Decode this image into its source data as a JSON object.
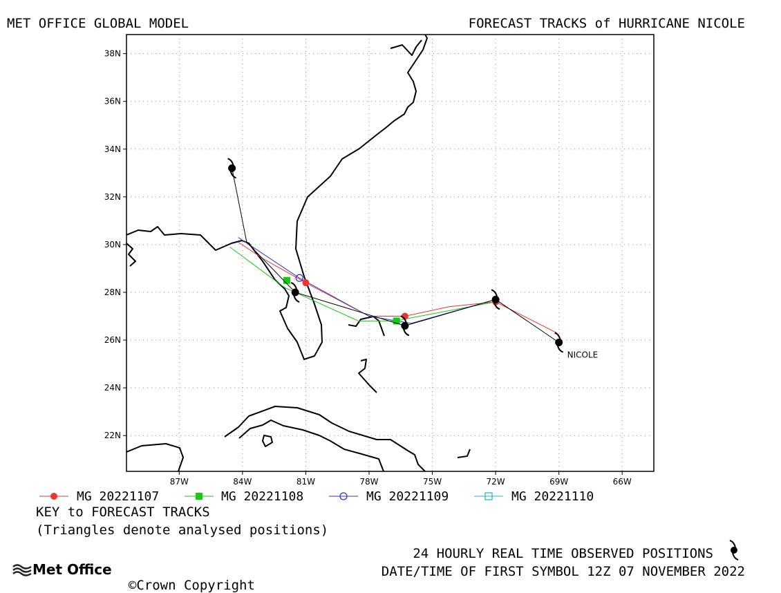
{
  "header": {
    "left_title": "MET OFFICE GLOBAL MODEL",
    "right_title": "FORECAST TRACKS of HURRICANE NICOLE"
  },
  "map": {
    "lon_range": [
      -89.5,
      -64.5
    ],
    "lat_range": [
      20.5,
      38.8
    ],
    "lat_ticks": [
      "38N",
      "36N",
      "34N",
      "32N",
      "30N",
      "28N",
      "26N",
      "24N",
      "22N"
    ],
    "lon_ticks": [
      "87W",
      "84W",
      "81W",
      "78W",
      "75W",
      "72W",
      "69W",
      "66W"
    ],
    "grid": true,
    "storm_label": "NICOLE"
  },
  "legend": [
    {
      "label": "MG 20221107",
      "color": "#ee3333",
      "marker": "filled-circle"
    },
    {
      "label": "MG 20221108",
      "color": "#11cc11",
      "marker": "filled-square"
    },
    {
      "label": "MG 20221109",
      "color": "#3333cc",
      "marker": "open-circle"
    },
    {
      "label": "MG 20221110",
      "color": "#22bbcc",
      "marker": "open-square"
    }
  ],
  "tracks": [
    {
      "name": "MG 20221107",
      "color": "#ee3333",
      "points": [
        [
          -69.1,
          26.3
        ],
        [
          -72.0,
          27.6
        ],
        [
          -74.2,
          27.4
        ],
        [
          -76.3,
          27.0
        ],
        [
          -78.0,
          27.0
        ],
        [
          -81.0,
          28.4
        ],
        [
          -83.0,
          29.4
        ],
        [
          -84.2,
          30.1
        ]
      ],
      "markers": [
        [
          -72.0,
          27.6
        ],
        [
          -76.3,
          27.0
        ],
        [
          -81.0,
          28.4
        ]
      ]
    },
    {
      "name": "MG 20221108",
      "color": "#11cc11",
      "points": [
        [
          -72.0,
          27.6
        ],
        [
          -76.2,
          26.9
        ],
        [
          -76.7,
          26.8
        ],
        [
          -78.5,
          26.8
        ],
        [
          -82.0,
          28.2
        ],
        [
          -84.6,
          29.9
        ]
      ],
      "markers": [
        [
          -76.7,
          26.8
        ],
        [
          -81.9,
          28.5
        ]
      ]
    },
    {
      "name": "MG 20221109",
      "color": "#3333cc",
      "points": [
        [
          -72.0,
          27.7
        ],
        [
          -76.0,
          26.7
        ],
        [
          -78.0,
          27.0
        ],
        [
          -81.3,
          28.6
        ],
        [
          -84.2,
          30.3
        ]
      ],
      "markers": [
        [
          -81.3,
          28.6
        ]
      ]
    }
  ],
  "observed": {
    "points": [
      [
        -69.0,
        25.9
      ],
      [
        -72.0,
        27.7
      ],
      [
        -76.3,
        26.6
      ],
      [
        -81.5,
        28.0
      ],
      [
        -83.8,
        30.1
      ],
      [
        -84.5,
        33.2
      ]
    ],
    "symbols": [
      [
        -69.0,
        25.9
      ],
      [
        -72.0,
        27.7
      ],
      [
        -76.3,
        26.6
      ],
      [
        -81.5,
        28.0
      ],
      [
        -84.5,
        33.2
      ]
    ]
  },
  "key": {
    "title": "KEY to FORECAST TRACKS",
    "note": "(Triangles denote analysed positions)"
  },
  "footer": {
    "observed_label": "24 HOURLY REAL TIME OBSERVED POSITIONS",
    "datetime": "DATE/TIME OF FIRST SYMBOL 12Z 07 NOVEMBER 2022",
    "logo_text": "Met Office",
    "copyright": "Crown Copyright"
  }
}
